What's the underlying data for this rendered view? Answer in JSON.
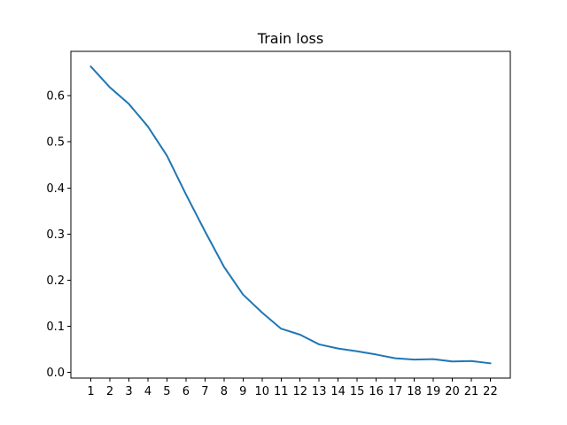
{
  "chart_data": {
    "type": "line",
    "title": "Train loss",
    "xlabel": "",
    "ylabel": "",
    "x": [
      1,
      2,
      3,
      4,
      5,
      6,
      7,
      8,
      9,
      10,
      11,
      12,
      13,
      14,
      15,
      16,
      17,
      18,
      19,
      20,
      21,
      22
    ],
    "x_ticks": [
      "1",
      "2",
      "3",
      "4",
      "5",
      "6",
      "7",
      "8",
      "9",
      "10",
      "11",
      "12",
      "13",
      "14",
      "15",
      "16",
      "17",
      "18",
      "19",
      "20",
      "21",
      "22"
    ],
    "y_ticks": [
      0.0,
      0.1,
      0.2,
      0.3,
      0.4,
      0.5,
      0.6
    ],
    "y_tick_labels": [
      "0.0",
      "0.1",
      "0.2",
      "0.3",
      "0.4",
      "0.5",
      "0.6"
    ],
    "xlim": [
      -0.05,
      23.05
    ],
    "ylim": [
      -0.012,
      0.696
    ],
    "grid": false,
    "series": [
      {
        "color": "#1f77b4",
        "values": [
          0.663,
          0.618,
          0.582,
          0.533,
          0.47,
          0.386,
          0.306,
          0.229,
          0.169,
          0.13,
          0.095,
          0.082,
          0.061,
          0.052,
          0.046,
          0.039,
          0.031,
          0.028,
          0.029,
          0.024,
          0.025,
          0.02
        ]
      }
    ]
  }
}
